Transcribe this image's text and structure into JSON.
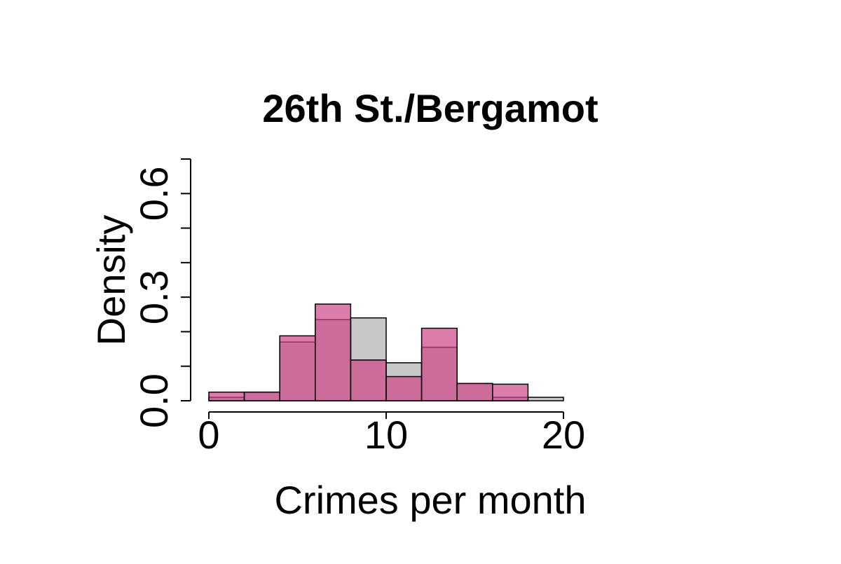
{
  "chart_data": {
    "type": "bar",
    "title": "26th St./Bergamot",
    "xlabel": "Crimes per month",
    "ylabel": "Density",
    "xlim": [
      0,
      20
    ],
    "ylim": [
      0,
      0.7
    ],
    "x_ticks": [
      0,
      10,
      20
    ],
    "x_tick_labels": [
      "0",
      "10",
      "20"
    ],
    "y_ticks": [
      0,
      0.1,
      0.2,
      0.3,
      0.4,
      0.5,
      0.6,
      0.7
    ],
    "y_tick_labels": [
      "0.0",
      "",
      "",
      "0.3",
      "",
      "",
      "0.6",
      ""
    ],
    "bin_edges": [
      0,
      2,
      4,
      6,
      8,
      10,
      12,
      14,
      16,
      18,
      20
    ],
    "grid": false,
    "series": [
      {
        "color": "#c8c8c8",
        "values": [
          0.01,
          0.025,
          0.17,
          0.235,
          0.24,
          0.11,
          0.155,
          0.05,
          0.01,
          0.01
        ]
      },
      {
        "color": "#cc4488",
        "opacity": 0.7,
        "values": [
          0.025,
          0.025,
          0.188,
          0.28,
          0.118,
          0.07,
          0.21,
          0.05,
          0.048,
          0
        ]
      }
    ]
  }
}
